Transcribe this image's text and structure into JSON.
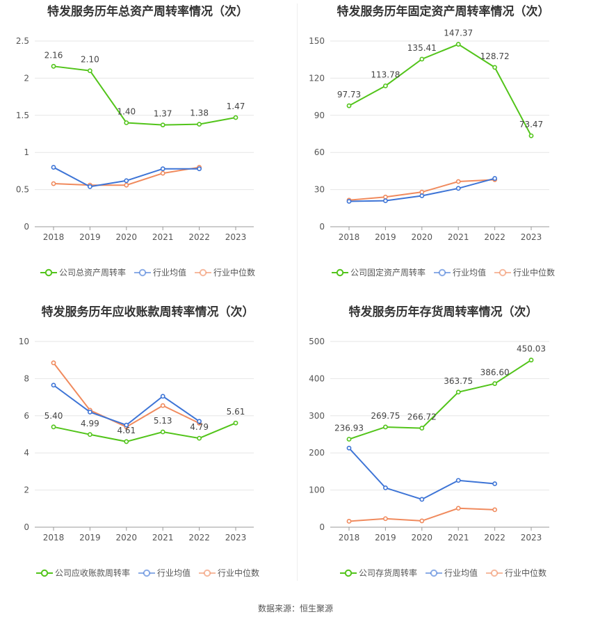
{
  "source_text": "数据来源：恒生聚源",
  "colors": {
    "company": "#52c41a",
    "avg": "#3d74d6",
    "median": "#f08a5d",
    "grid": "#e6e6e6",
    "axis": "#555555",
    "label": "#444444"
  },
  "chart_data": [
    {
      "type": "line",
      "title": "特发服务历年总资产周转率情况（次）",
      "categories": [
        "2018",
        "2019",
        "2020",
        "2021",
        "2022",
        "2023"
      ],
      "ylim": [
        0,
        2.5
      ],
      "yticks": [
        "0",
        "0.5",
        "1",
        "1.5",
        "2",
        "2.5"
      ],
      "legend": "bottom",
      "series": [
        {
          "name": "公司总资产周转率",
          "role": "company",
          "values": [
            2.16,
            2.1,
            1.4,
            1.37,
            1.38,
            1.47
          ],
          "labels": [
            "2.16",
            "2.10",
            "1.40",
            "1.37",
            "1.38",
            "1.47"
          ]
        },
        {
          "name": "行业均值",
          "role": "avg",
          "values": [
            0.8,
            0.54,
            0.62,
            0.78,
            0.78,
            null
          ]
        },
        {
          "name": "行业中位数",
          "role": "median",
          "values": [
            0.58,
            0.56,
            0.56,
            0.72,
            0.8,
            null
          ]
        }
      ]
    },
    {
      "type": "line",
      "title": "特发服务历年固定资产周转率情况（次）",
      "categories": [
        "2018",
        "2019",
        "2020",
        "2021",
        "2022",
        "2023"
      ],
      "ylim": [
        0,
        150
      ],
      "yticks": [
        "0",
        "30",
        "60",
        "90",
        "120",
        "150"
      ],
      "legend": "bottom",
      "series": [
        {
          "name": "公司固定资产周转率",
          "role": "company",
          "values": [
            97.73,
            113.78,
            135.41,
            147.37,
            128.72,
            73.47
          ],
          "labels": [
            "97.73",
            "113.78",
            "135.41",
            "147.37",
            "128.72",
            "73.47"
          ]
        },
        {
          "name": "行业均值",
          "role": "avg",
          "values": [
            20.5,
            21.0,
            25.0,
            31.0,
            39.0,
            null
          ]
        },
        {
          "name": "行业中位数",
          "role": "median",
          "values": [
            21.5,
            24.0,
            28.0,
            36.5,
            38.0,
            null
          ]
        }
      ]
    },
    {
      "type": "line",
      "title": "特发服务历年应收账款周转率情况（次）",
      "categories": [
        "2018",
        "2019",
        "2020",
        "2021",
        "2022",
        "2023"
      ],
      "ylim": [
        0,
        10
      ],
      "yticks": [
        "0",
        "2",
        "4",
        "6",
        "8",
        "10"
      ],
      "legend": "bottom",
      "series": [
        {
          "name": "公司应收账款周转率",
          "role": "company",
          "values": [
            5.4,
            4.99,
            4.61,
            5.13,
            4.79,
            5.61
          ],
          "labels": [
            "5.40",
            "4.99",
            "4.61",
            "5.13",
            "4.79",
            "5.61"
          ]
        },
        {
          "name": "行业均值",
          "role": "avg",
          "values": [
            7.65,
            6.2,
            5.5,
            7.05,
            5.7,
            null
          ]
        },
        {
          "name": "行业中位数",
          "role": "median",
          "values": [
            8.85,
            6.3,
            5.4,
            6.55,
            5.6,
            null
          ]
        }
      ]
    },
    {
      "type": "line",
      "title": "特发服务历年存货周转率情况（次）",
      "categories": [
        "2018",
        "2019",
        "2020",
        "2021",
        "2022",
        "2023"
      ],
      "ylim": [
        0,
        500
      ],
      "yticks": [
        "0",
        "100",
        "200",
        "300",
        "400",
        "500"
      ],
      "legend": "bottom",
      "series": [
        {
          "name": "公司存货周转率",
          "role": "company",
          "values": [
            236.93,
            269.75,
            266.72,
            363.75,
            386.6,
            450.03
          ],
          "labels": [
            "236.93",
            "269.75",
            "266.72",
            "363.75",
            "386.60",
            "450.03"
          ]
        },
        {
          "name": "行业均值",
          "role": "avg",
          "values": [
            213.0,
            106.0,
            75.0,
            126.0,
            117.0,
            null
          ]
        },
        {
          "name": "行业中位数",
          "role": "median",
          "values": [
            16.0,
            23.0,
            17.0,
            51.0,
            47.0,
            null
          ]
        }
      ]
    }
  ]
}
